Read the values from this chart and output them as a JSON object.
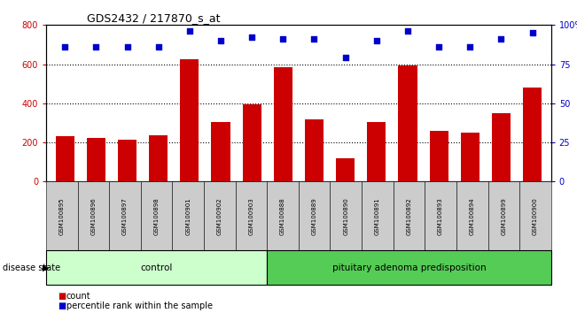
{
  "title": "GDS2432 / 217870_s_at",
  "categories": [
    "GSM100895",
    "GSM100896",
    "GSM100897",
    "GSM100898",
    "GSM100901",
    "GSM100902",
    "GSM100903",
    "GSM100888",
    "GSM100889",
    "GSM100890",
    "GSM100891",
    "GSM100892",
    "GSM100893",
    "GSM100894",
    "GSM100899",
    "GSM100900"
  ],
  "counts": [
    230,
    225,
    215,
    235,
    625,
    305,
    395,
    585,
    320,
    120,
    305,
    595,
    260,
    250,
    350,
    480
  ],
  "percentiles": [
    86,
    86,
    86,
    86,
    96,
    90,
    92,
    91,
    91,
    79,
    90,
    96,
    86,
    86,
    91,
    95
  ],
  "bar_color": "#cc0000",
  "dot_color": "#0000cc",
  "ylim_left": [
    0,
    800
  ],
  "ylim_right": [
    0,
    100
  ],
  "yticks_left": [
    0,
    200,
    400,
    600,
    800
  ],
  "yticks_right": [
    0,
    25,
    50,
    75,
    100
  ],
  "control_label": "control",
  "pituitary_label": "pituitary adenoma predisposition",
  "disease_state_label": "disease state",
  "legend_count": "count",
  "legend_percentile": "percentile rank within the sample",
  "bg_color": "#ffffff",
  "xlabel_color": "#cc0000",
  "ylabel_right_color": "#0000cc",
  "control_color": "#ccffcc",
  "pituitary_color": "#55cc55",
  "tick_area_color": "#cccccc",
  "n_control": 7,
  "n_pituitary": 9
}
